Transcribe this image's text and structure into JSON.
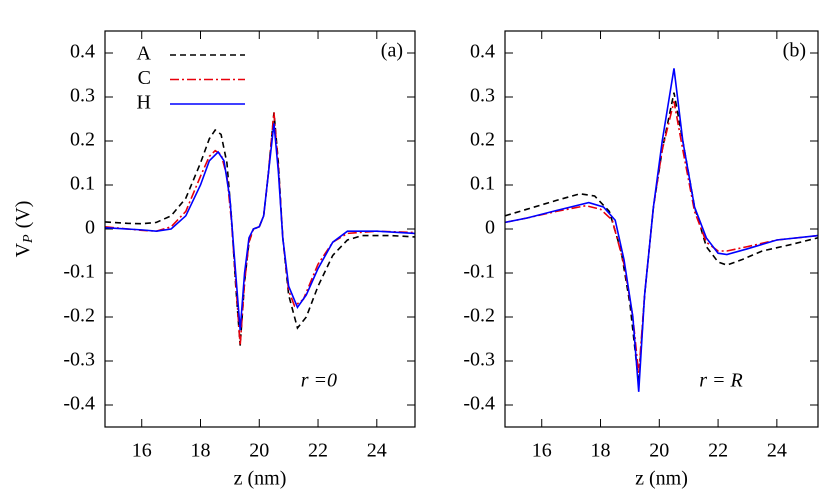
{
  "chart_data": [
    {
      "type": "line",
      "panel_label": "(a)",
      "annotation": "r =0",
      "xlabel": "z (nm)",
      "ylabel": {
        "main": "V",
        "sub": "P",
        "unit": "(V)"
      },
      "xlim": [
        14.75,
        25.3
      ],
      "ylim": [
        -0.45,
        0.45
      ],
      "xticks": [
        16,
        18,
        20,
        22,
        24
      ],
      "yticks": [
        0.4,
        0.3,
        0.2,
        0.1,
        0,
        -0.1,
        -0.2,
        -0.3,
        -0.4
      ],
      "legend": true,
      "grid": false,
      "series": [
        {
          "name": "A",
          "color": "#000000",
          "dash": "6,4",
          "x": [
            14.75,
            15.5,
            16,
            16.5,
            17,
            17.5,
            18,
            18.3,
            18.5,
            18.7,
            18.9,
            19.05,
            19.2,
            19.35,
            19.5,
            19.65,
            19.8,
            20,
            20.15,
            20.3,
            20.5,
            20.65,
            20.8,
            21,
            21.3,
            21.6,
            22,
            22.5,
            23,
            23.5,
            24.5,
            25.3
          ],
          "values": [
            0.016,
            0.013,
            0.012,
            0.015,
            0.03,
            0.07,
            0.15,
            0.205,
            0.225,
            0.215,
            0.15,
            0.03,
            -0.13,
            -0.265,
            -0.12,
            -0.03,
            0.0,
            0.005,
            0.03,
            0.12,
            0.265,
            0.15,
            -0.02,
            -0.15,
            -0.225,
            -0.2,
            -0.13,
            -0.06,
            -0.025,
            -0.015,
            -0.015,
            -0.018
          ]
        },
        {
          "name": "C",
          "color": "#e8000b",
          "dash": "9,3,2,3",
          "x": [
            14.75,
            16,
            16.5,
            17,
            17.5,
            18,
            18.3,
            18.5,
            18.7,
            18.9,
            19.05,
            19.2,
            19.35,
            19.5,
            19.65,
            19.8,
            20,
            20.15,
            20.3,
            20.5,
            20.65,
            20.8,
            21,
            21.2,
            21.5,
            22,
            22.5,
            23,
            24,
            25.3
          ],
          "values": [
            0.005,
            -0.003,
            -0.005,
            0.005,
            0.04,
            0.12,
            0.165,
            0.178,
            0.17,
            0.12,
            0.02,
            -0.12,
            -0.265,
            -0.12,
            -0.03,
            0.0,
            0.005,
            0.03,
            0.12,
            0.265,
            0.14,
            -0.02,
            -0.14,
            -0.175,
            -0.16,
            -0.08,
            -0.03,
            -0.01,
            -0.005,
            -0.008
          ]
        },
        {
          "name": "H",
          "color": "#0000ff",
          "dash": "none",
          "x": [
            14.75,
            16,
            16.5,
            17,
            17.5,
            18,
            18.3,
            18.6,
            18.8,
            19,
            19.15,
            19.35,
            19.5,
            19.65,
            19.8,
            20,
            20.15,
            20.3,
            20.5,
            20.65,
            20.8,
            21,
            21.3,
            21.6,
            22,
            22.5,
            23,
            24,
            25.3
          ],
          "values": [
            0.003,
            -0.002,
            -0.005,
            0.0,
            0.03,
            0.1,
            0.155,
            0.175,
            0.155,
            0.07,
            -0.06,
            -0.23,
            -0.1,
            -0.02,
            0.0,
            0.005,
            0.03,
            0.12,
            0.24,
            0.13,
            -0.02,
            -0.13,
            -0.178,
            -0.15,
            -0.09,
            -0.03,
            -0.005,
            -0.005,
            -0.01
          ]
        }
      ]
    },
    {
      "type": "line",
      "panel_label": "(b)",
      "annotation": "r = R",
      "xlabel": "z (nm)",
      "xlim": [
        14.75,
        25.4
      ],
      "ylim": [
        -0.45,
        0.45
      ],
      "xticks": [
        16,
        18,
        20,
        22,
        24
      ],
      "yticks": [
        0.4,
        0.3,
        0.2,
        0.1,
        0,
        -0.1,
        -0.2,
        -0.3,
        -0.4
      ],
      "legend": false,
      "grid": false,
      "series": [
        {
          "name": "A",
          "color": "#000000",
          "dash": "6,4",
          "x": [
            14.75,
            15.5,
            16.5,
            17.3,
            17.8,
            18.3,
            18.7,
            19.0,
            19.3,
            19.5,
            19.8,
            20.1,
            20.5,
            20.8,
            21.2,
            21.6,
            22,
            22.3,
            22.8,
            23.5,
            24.5,
            25.4
          ],
          "values": [
            0.03,
            0.045,
            0.065,
            0.08,
            0.075,
            0.04,
            -0.05,
            -0.17,
            -0.35,
            -0.15,
            0.05,
            0.18,
            0.31,
            0.2,
            0.05,
            -0.04,
            -0.075,
            -0.082,
            -0.07,
            -0.05,
            -0.035,
            -0.02
          ]
        },
        {
          "name": "C",
          "color": "#e8000b",
          "dash": "9,3,2,3",
          "x": [
            14.75,
            15.5,
            16.5,
            17.5,
            18,
            18.4,
            18.8,
            19.1,
            19.3,
            19.5,
            19.8,
            20.1,
            20.5,
            20.8,
            21.2,
            21.6,
            22,
            22.3,
            23,
            24,
            25.4
          ],
          "values": [
            0.015,
            0.025,
            0.04,
            0.053,
            0.045,
            0.02,
            -0.08,
            -0.2,
            -0.33,
            -0.15,
            0.05,
            0.18,
            0.29,
            0.18,
            0.04,
            -0.03,
            -0.05,
            -0.05,
            -0.04,
            -0.025,
            -0.015
          ]
        },
        {
          "name": "H",
          "color": "#0000ff",
          "dash": "none",
          "x": [
            14.75,
            15.5,
            16.5,
            17.6,
            18.1,
            18.5,
            18.8,
            19.1,
            19.3,
            19.5,
            19.8,
            20.1,
            20.5,
            20.8,
            21.2,
            21.6,
            22,
            22.3,
            23,
            24,
            25.4
          ],
          "values": [
            0.015,
            0.025,
            0.042,
            0.06,
            0.05,
            0.02,
            -0.07,
            -0.2,
            -0.37,
            -0.15,
            0.05,
            0.2,
            0.365,
            0.2,
            0.05,
            -0.02,
            -0.055,
            -0.058,
            -0.045,
            -0.025,
            -0.015
          ]
        }
      ]
    }
  ]
}
